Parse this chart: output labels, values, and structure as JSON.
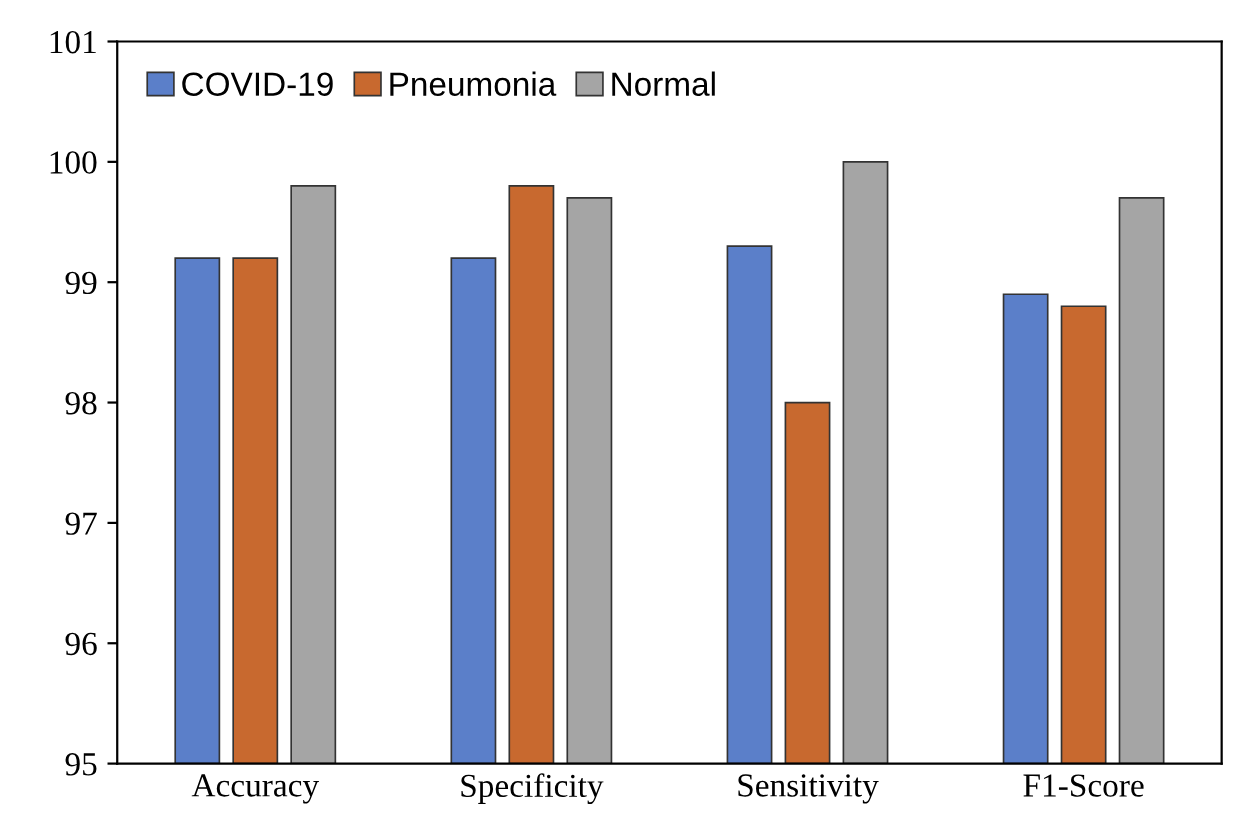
{
  "chart_data": {
    "type": "bar",
    "categories": [
      "Accuracy",
      "Specificity",
      "Sensitivity",
      "F1-Score"
    ],
    "series": [
      {
        "name": "COVID-19",
        "color": "#5b7fc9",
        "values": [
          99.2,
          99.2,
          99.3,
          98.9
        ]
      },
      {
        "name": "Pneumonia",
        "color": "#c8692f",
        "values": [
          99.2,
          99.8,
          98.0,
          98.8
        ]
      },
      {
        "name": "Normal",
        "color": "#a5a5a5",
        "values": [
          99.8,
          99.7,
          100.0,
          99.7
        ]
      }
    ],
    "ylim": [
      95,
      101
    ],
    "yticks": [
      95,
      96,
      97,
      98,
      99,
      100,
      101
    ],
    "grid": false,
    "legend": "top left"
  }
}
